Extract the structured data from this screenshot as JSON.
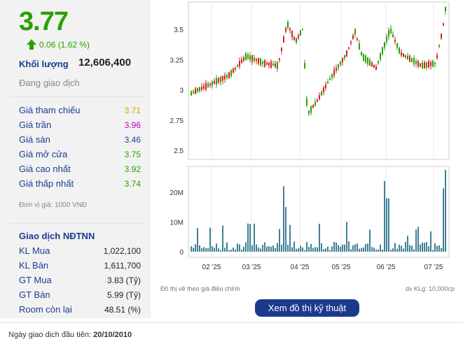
{
  "quote": {
    "price": "3.77",
    "change": "0.06 (1.62 %)",
    "volume_label": "Khối lượng",
    "volume": "12,606,400",
    "status": "Đang giao dịch",
    "rows": [
      {
        "label": "Giá tham chiếu",
        "value": "3.71",
        "color": "#e69a00"
      },
      {
        "label": "Giá trần",
        "value": "3.96",
        "color": "#c000c0"
      },
      {
        "label": "Giá sàn",
        "value": "3.46",
        "color": "#1a3c8f"
      },
      {
        "label": "Giá mở cửa",
        "value": "3.75",
        "color": "#2aa000"
      },
      {
        "label": "Giá cao nhất",
        "value": "3.92",
        "color": "#2aa000"
      },
      {
        "label": "Giá thấp nhất",
        "value": "3.74",
        "color": "#2aa000"
      }
    ],
    "unit_note": "Đơn vị giá: 1000 VNĐ"
  },
  "foreign": {
    "title": "Giao dịch NĐTNN",
    "rows": [
      {
        "label": "KL Mua",
        "value": "1,022,100"
      },
      {
        "label": "KL Bán",
        "value": "1,611,700"
      },
      {
        "label": "GT Mua",
        "value": "3.83 (Tỷ)"
      },
      {
        "label": "GT Bán",
        "value": "5.99 (Tỷ)"
      },
      {
        "label": "Room còn lại",
        "value": "48.51 (%)"
      }
    ]
  },
  "chart": {
    "price_ticks": [
      "3.5",
      "3.25",
      "3",
      "2.75",
      "2.5"
    ],
    "volume_ticks": [
      "20M",
      "10M",
      "0"
    ],
    "month_labels": [
      "02 '25",
      "03 '25",
      "04 '25",
      "05 '25",
      "06 '25",
      "07 '25"
    ],
    "note_left": "Đồ thị vẽ theo giá điều chỉnh",
    "note_right": "dv KLg: 10,000cp",
    "up_color": "#2aa000",
    "down_color": "#d81e1e",
    "volume_color": "#3f7f96"
  },
  "tech_button": "Xem đồ thị kỹ thuật",
  "first_day": {
    "label": "Ngày giao dịch đầu tiên:",
    "value": "20/10/2010"
  }
}
